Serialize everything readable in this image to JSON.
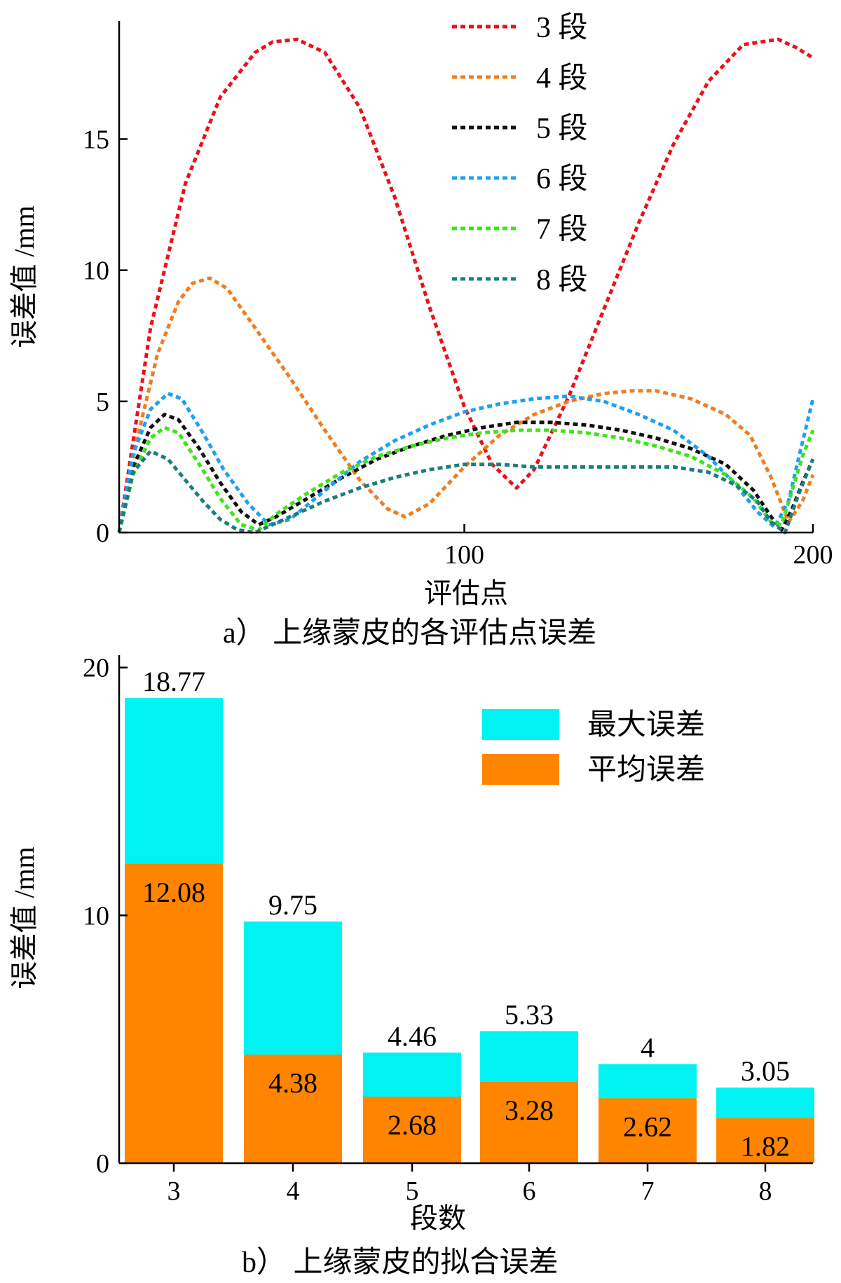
{
  "chart_data": [
    {
      "type": "line",
      "caption": "a） 上缘蒙皮的各评估点误差",
      "xlabel": "评估点",
      "ylabel": "误差值 /mm",
      "xlim": [
        1,
        200
      ],
      "ylim": [
        0,
        19.5
      ],
      "xticks": [
        "100",
        "200"
      ],
      "xtick_values": [
        100,
        200
      ],
      "yticks": [
        "0",
        "5",
        "10",
        "15"
      ],
      "ytick_values": [
        0,
        5,
        10,
        15
      ],
      "legend_position": "top-right",
      "series": [
        {
          "name": "3 段",
          "color": "#e8121c",
          "x": [
            1,
            10,
            20,
            30,
            40,
            45,
            52,
            60,
            70,
            80,
            90,
            100,
            108,
            115,
            120,
            130,
            140,
            150,
            160,
            170,
            180,
            190,
            195,
            200
          ],
          "y": [
            0,
            7.8,
            13.3,
            16.6,
            18.3,
            18.7,
            18.8,
            18.3,
            16.2,
            12.8,
            8.6,
            4.8,
            2.6,
            1.7,
            2.4,
            5.2,
            8.5,
            11.8,
            14.8,
            17.2,
            18.6,
            18.8,
            18.5,
            18.1
          ]
        },
        {
          "name": "4 段",
          "color": "#f07d1e",
          "x": [
            1,
            6,
            12,
            18,
            22,
            27,
            32,
            40,
            50,
            60,
            70,
            78,
            83,
            90,
            100,
            110,
            120,
            130,
            140,
            148,
            155,
            165,
            175,
            182,
            188,
            193,
            197,
            200
          ],
          "y": [
            0,
            3.5,
            6.8,
            8.8,
            9.5,
            9.7,
            9.3,
            7.8,
            5.9,
            3.9,
            2.0,
            0.9,
            0.6,
            1.1,
            2.5,
            3.7,
            4.5,
            5.0,
            5.3,
            5.4,
            5.4,
            5.1,
            4.5,
            3.7,
            2.1,
            0.4,
            1.2,
            2.2
          ]
        },
        {
          "name": "5 段",
          "color": "#111111",
          "x": [
            1,
            5,
            10,
            14,
            18,
            24,
            30,
            36,
            41,
            46,
            55,
            65,
            75,
            85,
            95,
            105,
            115,
            125,
            135,
            145,
            155,
            165,
            175,
            183,
            188,
            191,
            194,
            197,
            200
          ],
          "y": [
            0,
            2.5,
            4.0,
            4.5,
            4.3,
            3.2,
            1.9,
            0.8,
            0.3,
            0.6,
            1.3,
            2.1,
            2.8,
            3.3,
            3.7,
            4.0,
            4.2,
            4.2,
            4.1,
            3.9,
            3.6,
            3.2,
            2.6,
            1.6,
            0.6,
            0.1,
            0.9,
            1.9,
            2.8
          ]
        },
        {
          "name": "6 段",
          "color": "#1da1f2",
          "x": [
            1,
            5,
            10,
            15,
            19,
            25,
            31,
            38,
            44,
            50,
            60,
            70,
            80,
            90,
            100,
            110,
            120,
            130,
            140,
            150,
            160,
            170,
            178,
            184,
            189,
            193,
            196,
            200
          ],
          "y": [
            0,
            3.0,
            4.7,
            5.3,
            5.1,
            3.8,
            2.4,
            1.1,
            0.3,
            0.5,
            1.6,
            2.7,
            3.5,
            4.1,
            4.6,
            4.9,
            5.1,
            5.2,
            5.0,
            4.5,
            3.9,
            2.9,
            1.8,
            0.8,
            0.2,
            1.2,
            2.9,
            5.1
          ]
        },
        {
          "name": "7 段",
          "color": "#3ee31b",
          "x": [
            1,
            5,
            10,
            14,
            18,
            24,
            30,
            36,
            41,
            46,
            55,
            65,
            75,
            85,
            95,
            105,
            115,
            125,
            135,
            145,
            155,
            165,
            175,
            183,
            188,
            191,
            194,
            197,
            200
          ],
          "y": [
            0,
            2.2,
            3.6,
            4.0,
            3.8,
            2.6,
            1.3,
            0.3,
            0.1,
            0.7,
            1.5,
            2.3,
            2.9,
            3.3,
            3.6,
            3.8,
            3.9,
            3.9,
            3.8,
            3.6,
            3.3,
            2.9,
            2.2,
            1.3,
            0.4,
            0.3,
            1.6,
            2.9,
            3.9
          ]
        },
        {
          "name": "8 段",
          "color": "#1a7f7c",
          "x": [
            1,
            5,
            10,
            15,
            20,
            25,
            30,
            35,
            40,
            50,
            60,
            70,
            80,
            90,
            100,
            110,
            120,
            130,
            140,
            150,
            160,
            170,
            178,
            184,
            188,
            192,
            196,
            200
          ],
          "y": [
            0,
            2.3,
            3.1,
            2.8,
            2.0,
            1.2,
            0.5,
            0.1,
            0.0,
            0.6,
            1.2,
            1.7,
            2.1,
            2.4,
            2.6,
            2.6,
            2.5,
            2.5,
            2.5,
            2.5,
            2.5,
            2.3,
            1.8,
            1.2,
            0.4,
            0.0,
            1.5,
            2.8
          ]
        }
      ]
    },
    {
      "type": "bar",
      "stacked": "overlay",
      "caption": "b） 上缘蒙皮的拟合误差",
      "xlabel": "段数",
      "ylabel": "误差值 /mm",
      "categories": [
        "3",
        "4",
        "5",
        "6",
        "7",
        "8"
      ],
      "ylim": [
        0,
        20.5
      ],
      "yticks": [
        "0",
        "10",
        "20"
      ],
      "ytick_values": [
        0,
        10,
        20
      ],
      "legend_position": "top-right",
      "series": [
        {
          "name": "最大误差",
          "color": "#00f3f3",
          "values": [
            18.77,
            9.75,
            4.46,
            5.33,
            4,
            3.05
          ],
          "labels": [
            "18.77",
            "9.75",
            "4.46",
            "5.33",
            "4",
            "3.05"
          ]
        },
        {
          "name": "平均误差",
          "color": "#ff8400",
          "values": [
            12.08,
            4.38,
            2.68,
            3.28,
            2.62,
            1.82
          ],
          "labels": [
            "12.08",
            "4.38",
            "2.68",
            "3.28",
            "2.62",
            "1.82"
          ]
        }
      ]
    }
  ]
}
